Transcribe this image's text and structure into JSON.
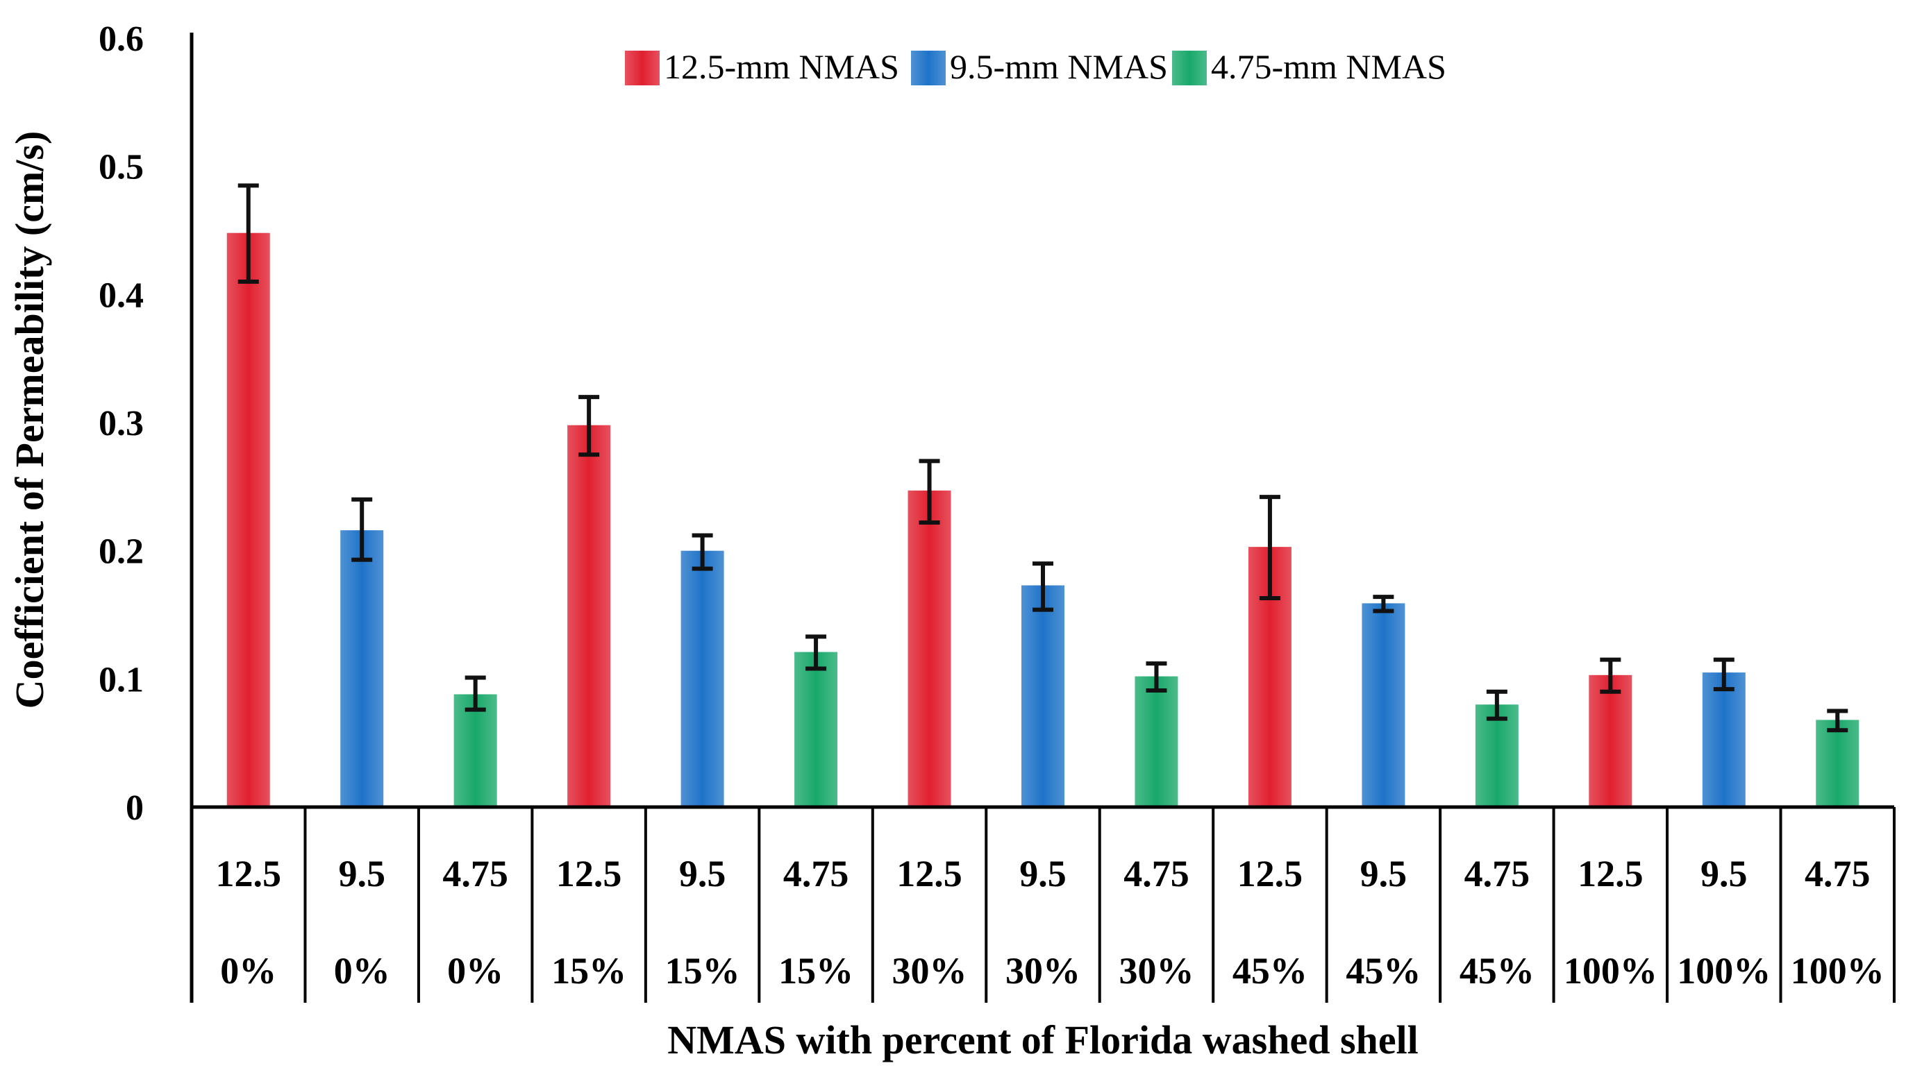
{
  "chart_data": {
    "type": "bar",
    "xlabel": "NMAS with percent of Florida washed shell",
    "ylabel": "Coefficient of Permeability  (cm/s)",
    "ylim": [
      0,
      0.6
    ],
    "yticks": [
      "0",
      "0.1",
      "0.2",
      "0.3",
      "0.4",
      "0.5",
      "0.6"
    ],
    "grid": false,
    "legend_position": "top-center",
    "series_legend": [
      {
        "name": "12.5-mm NMAS",
        "color": "#e02030"
      },
      {
        "name": "9.5-mm NMAS",
        "color": "#1e73c8"
      },
      {
        "name": "4.75-mm NMAS",
        "color": "#19a86a"
      }
    ],
    "categories": [
      {
        "nmas": "12.5",
        "percent": "0%",
        "series": 0,
        "value": 0.448,
        "err_low": 0.41,
        "err_high": 0.485
      },
      {
        "nmas": "9.5",
        "percent": "0%",
        "series": 1,
        "value": 0.216,
        "err_low": 0.193,
        "err_high": 0.24
      },
      {
        "nmas": "4.75",
        "percent": "0%",
        "series": 2,
        "value": 0.088,
        "err_low": 0.076,
        "err_high": 0.101
      },
      {
        "nmas": "12.5",
        "percent": "15%",
        "series": 0,
        "value": 0.298,
        "err_low": 0.275,
        "err_high": 0.32
      },
      {
        "nmas": "9.5",
        "percent": "15%",
        "series": 1,
        "value": 0.2,
        "err_low": 0.186,
        "err_high": 0.212
      },
      {
        "nmas": "4.75",
        "percent": "15%",
        "series": 2,
        "value": 0.121,
        "err_low": 0.108,
        "err_high": 0.133
      },
      {
        "nmas": "12.5",
        "percent": "30%",
        "series": 0,
        "value": 0.247,
        "err_low": 0.222,
        "err_high": 0.27
      },
      {
        "nmas": "9.5",
        "percent": "30%",
        "series": 1,
        "value": 0.173,
        "err_low": 0.154,
        "err_high": 0.19
      },
      {
        "nmas": "4.75",
        "percent": "30%",
        "series": 2,
        "value": 0.102,
        "err_low": 0.091,
        "err_high": 0.112
      },
      {
        "nmas": "12.5",
        "percent": "45%",
        "series": 0,
        "value": 0.203,
        "err_low": 0.163,
        "err_high": 0.242
      },
      {
        "nmas": "9.5",
        "percent": "45%",
        "series": 1,
        "value": 0.159,
        "err_low": 0.153,
        "err_high": 0.164
      },
      {
        "nmas": "4.75",
        "percent": "45%",
        "series": 2,
        "value": 0.08,
        "err_low": 0.069,
        "err_high": 0.09
      },
      {
        "nmas": "12.5",
        "percent": "100%",
        "series": 0,
        "value": 0.103,
        "err_low": 0.09,
        "err_high": 0.115
      },
      {
        "nmas": "9.5",
        "percent": "100%",
        "series": 1,
        "value": 0.105,
        "err_low": 0.092,
        "err_high": 0.115
      },
      {
        "nmas": "4.75",
        "percent": "100%",
        "series": 2,
        "value": 0.068,
        "err_low": 0.06,
        "err_high": 0.075
      }
    ]
  }
}
